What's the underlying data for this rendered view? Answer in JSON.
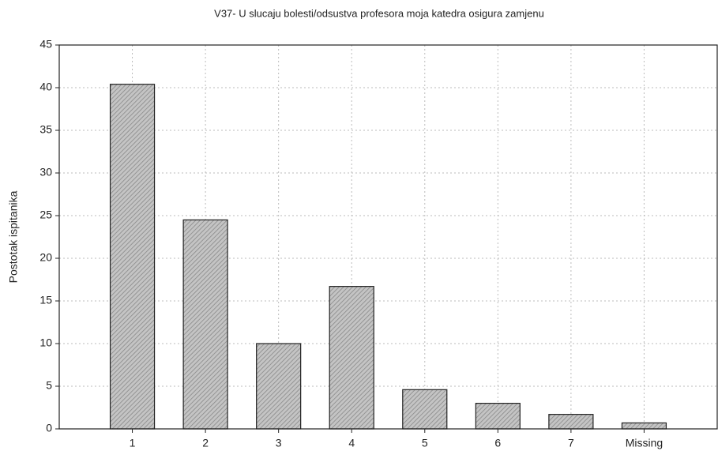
{
  "chart_data": {
    "type": "bar",
    "title": "V37- U slucaju bolesti/odsustva profesora moja katedra osigura zamjenu",
    "y_label": "Postotak ispitanika",
    "categories": [
      "1",
      "2",
      "3",
      "4",
      "5",
      "6",
      "7",
      "Missing"
    ],
    "values": [
      40.4,
      24.5,
      10.0,
      16.7,
      4.6,
      3.0,
      1.7,
      0.7
    ],
    "color": "#c4c4c4",
    "ylim": [
      0,
      45
    ],
    "yticks": [
      0,
      5,
      10,
      15,
      20,
      25,
      30,
      35,
      40,
      45
    ],
    "grid": true
  }
}
